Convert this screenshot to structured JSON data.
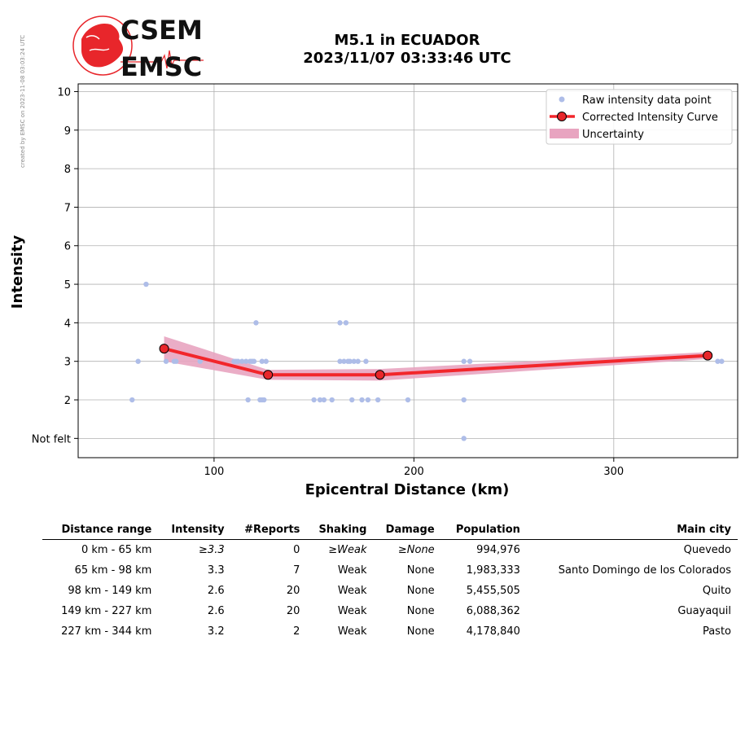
{
  "side_note": "created by EMSC on 2023-11-08 03:03:24 UTC",
  "logo": {
    "top_text": "CSEM",
    "bottom_text": "EMSC"
  },
  "title_line1": "M5.1 in ECUADOR",
  "title_line2": "2023/11/07 03:33:46 UTC",
  "colors": {
    "raw": "#aebde8",
    "curve": "#f2262b",
    "point": "#e8262b",
    "band": "#e8a4c0",
    "grid": "#b0b0b0"
  },
  "chart_data": {
    "type": "scatter",
    "xlabel": "Epicentral Distance (km)",
    "ylabel": "Intensity",
    "xlim": [
      32,
      362
    ],
    "ylim": [
      0.5,
      10.2
    ],
    "x_ticks": [
      100,
      200,
      300
    ],
    "x_tick_labels": [
      "100",
      "200",
      "300"
    ],
    "y_ticks": [
      1,
      2,
      3,
      4,
      5,
      6,
      7,
      8,
      9,
      10
    ],
    "y_tick_labels": [
      "Not felt",
      "2",
      "3",
      "4",
      "5",
      "6",
      "7",
      "8",
      "9",
      "10"
    ],
    "grid": true,
    "legend_position": "top-right",
    "legend": {
      "raw": "Raw intensity data point",
      "curve": "Corrected Intensity Curve",
      "uncertainty": "Uncertainty"
    },
    "raw_points": [
      {
        "x": 59,
        "y": 2
      },
      {
        "x": 62,
        "y": 3
      },
      {
        "x": 66,
        "y": 5
      },
      {
        "x": 76,
        "y": 3
      },
      {
        "x": 80,
        "y": 3
      },
      {
        "x": 81,
        "y": 3
      },
      {
        "x": 93,
        "y": 3
      },
      {
        "x": 110,
        "y": 3
      },
      {
        "x": 111,
        "y": 3
      },
      {
        "x": 112,
        "y": 3
      },
      {
        "x": 114,
        "y": 3
      },
      {
        "x": 116,
        "y": 3
      },
      {
        "x": 117,
        "y": 2
      },
      {
        "x": 118,
        "y": 3
      },
      {
        "x": 119,
        "y": 3
      },
      {
        "x": 120,
        "y": 3
      },
      {
        "x": 121,
        "y": 4
      },
      {
        "x": 123,
        "y": 2
      },
      {
        "x": 124,
        "y": 3
      },
      {
        "x": 124,
        "y": 2
      },
      {
        "x": 125,
        "y": 2
      },
      {
        "x": 126,
        "y": 3
      },
      {
        "x": 150,
        "y": 2
      },
      {
        "x": 153,
        "y": 2
      },
      {
        "x": 155,
        "y": 2
      },
      {
        "x": 159,
        "y": 2
      },
      {
        "x": 163,
        "y": 3
      },
      {
        "x": 163,
        "y": 4
      },
      {
        "x": 165,
        "y": 3
      },
      {
        "x": 166,
        "y": 4
      },
      {
        "x": 167,
        "y": 3
      },
      {
        "x": 168,
        "y": 3
      },
      {
        "x": 169,
        "y": 2
      },
      {
        "x": 170,
        "y": 3
      },
      {
        "x": 172,
        "y": 3
      },
      {
        "x": 174,
        "y": 2
      },
      {
        "x": 176,
        "y": 3
      },
      {
        "x": 177,
        "y": 2
      },
      {
        "x": 182,
        "y": 2
      },
      {
        "x": 197,
        "y": 2
      },
      {
        "x": 225,
        "y": 1
      },
      {
        "x": 225,
        "y": 2
      },
      {
        "x": 225,
        "y": 3
      },
      {
        "x": 228,
        "y": 3
      },
      {
        "x": 352,
        "y": 3
      },
      {
        "x": 354,
        "y": 3
      }
    ],
    "curve": [
      {
        "x": 75,
        "y": 3.33
      },
      {
        "x": 127,
        "y": 2.65
      },
      {
        "x": 183,
        "y": 2.65
      },
      {
        "x": 347,
        "y": 3.15
      }
    ],
    "uncertainty": [
      {
        "x": 75,
        "lo": 3.0,
        "hi": 3.65
      },
      {
        "x": 127,
        "lo": 2.52,
        "hi": 2.78
      },
      {
        "x": 183,
        "lo": 2.5,
        "hi": 2.8
      },
      {
        "x": 347,
        "lo": 3.06,
        "hi": 3.24
      }
    ]
  },
  "table": {
    "headers": [
      "Distance range",
      "Intensity",
      "#Reports",
      "Shaking",
      "Damage",
      "Population",
      "Main city"
    ],
    "rows": [
      {
        "range": "0 km -   65 km",
        "intensity": "≥3.3",
        "reports": "0",
        "shaking": "≥Weak",
        "damage": "≥None",
        "population": "994,976",
        "city": "Quevedo",
        "italic": true
      },
      {
        "range": "65 km -   98 km",
        "intensity": "3.3",
        "reports": "7",
        "shaking": "Weak",
        "damage": "None",
        "population": "1,983,333",
        "city": "Santo Domingo de los Colorados",
        "italic": false
      },
      {
        "range": "98 km -  149 km",
        "intensity": "2.6",
        "reports": "20",
        "shaking": "Weak",
        "damage": "None",
        "population": "5,455,505",
        "city": "Quito",
        "italic": false
      },
      {
        "range": "149 km -  227 km",
        "intensity": "2.6",
        "reports": "20",
        "shaking": "Weak",
        "damage": "None",
        "population": "6,088,362",
        "city": "Guayaquil",
        "italic": false
      },
      {
        "range": "227 km -  344 km",
        "intensity": "3.2",
        "reports": "2",
        "shaking": "Weak",
        "damage": "None",
        "population": "4,178,840",
        "city": "Pasto",
        "italic": false
      }
    ]
  }
}
